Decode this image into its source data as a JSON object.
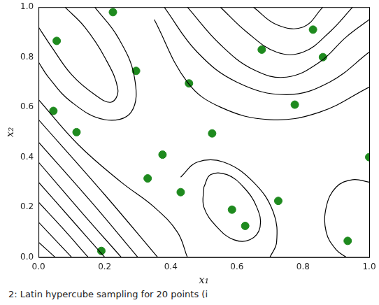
{
  "chart_data": {
    "type": "scatter",
    "caption": "2: Latin hypercube sampling for 20 points (i",
    "xlabel": "x₁",
    "ylabel": "x₂",
    "xlim": [
      0,
      1
    ],
    "ylim": [
      0,
      1
    ],
    "xticks": [
      {
        "value": 0,
        "label": "0.0"
      },
      0.2,
      0.4,
      0.6,
      0.8,
      {
        "value": 1,
        "label": "1.0"
      }
    ],
    "yticks": [
      {
        "value": 0,
        "label": "0.0"
      },
      0.2,
      0.4,
      0.6,
      0.8,
      {
        "value": 1,
        "label": "1.0"
      }
    ],
    "grid": false,
    "series": [
      {
        "type": "scatter",
        "marker": "circle",
        "color": "#1e8a1e",
        "x": [
          0.055,
          0.225,
          0.045,
          0.295,
          0.115,
          0.455,
          0.525,
          0.375,
          0.33,
          0.43,
          0.585,
          0.625,
          0.19,
          0.725,
          0.675,
          0.83,
          0.86,
          0.775,
          0.935,
          1.0
        ],
        "y": [
          0.865,
          0.98,
          0.585,
          0.745,
          0.5,
          0.695,
          0.495,
          0.41,
          0.315,
          0.26,
          0.19,
          0.125,
          0.025,
          0.225,
          0.83,
          0.91,
          0.8,
          0.61,
          0.065,
          0.4
        ]
      }
    ],
    "contours": {
      "type": "line",
      "color": "#000000",
      "lines": [
        [
          [
            0,
            0.06
          ],
          [
            0.05,
            0
          ]
        ],
        [
          [
            0,
            0.14
          ],
          [
            0.1,
            0
          ]
        ],
        [
          [
            0,
            0.22
          ],
          [
            0.07,
            0.12
          ],
          [
            0.15,
            0
          ]
        ],
        [
          [
            0,
            0.3
          ],
          [
            0.1,
            0.15
          ],
          [
            0.2,
            0
          ]
        ],
        [
          [
            0,
            0.38
          ],
          [
            0.13,
            0.18
          ],
          [
            0.25,
            0
          ]
        ],
        [
          [
            0,
            0.46
          ],
          [
            0.16,
            0.22
          ],
          [
            0.3,
            0
          ]
        ],
        [
          [
            0,
            0.55
          ],
          [
            0.2,
            0.25
          ],
          [
            0.36,
            0
          ]
        ],
        [
          [
            0,
            0.63
          ],
          [
            0.12,
            0.45
          ],
          [
            0.25,
            0.3
          ],
          [
            0.35,
            0.2
          ],
          [
            0.42,
            0.1
          ],
          [
            0.45,
            0
          ]
        ],
        [
          [
            0.08,
            1.0
          ],
          [
            0.14,
            0.92
          ],
          [
            0.2,
            0.8
          ],
          [
            0.24,
            0.67
          ],
          [
            0.22,
            0.62
          ],
          [
            0.17,
            0.65
          ],
          [
            0.1,
            0.73
          ],
          [
            0.04,
            0.84
          ],
          [
            0,
            0.92
          ]
        ],
        [
          [
            0.17,
            1.0
          ],
          [
            0.24,
            0.88
          ],
          [
            0.29,
            0.72
          ],
          [
            0.28,
            0.58
          ],
          [
            0.2,
            0.55
          ],
          [
            0.1,
            0.62
          ],
          [
            0.03,
            0.72
          ],
          [
            0,
            0.78
          ]
        ],
        [
          [
            0.5,
            0.28
          ],
          [
            0.52,
            0.33
          ],
          [
            0.57,
            0.33
          ],
          [
            0.62,
            0.28
          ],
          [
            0.66,
            0.2
          ],
          [
            0.67,
            0.12
          ],
          [
            0.64,
            0.07
          ],
          [
            0.59,
            0.07
          ],
          [
            0.54,
            0.12
          ],
          [
            0.5,
            0.2
          ],
          [
            0.5,
            0.28
          ]
        ],
        [
          [
            0.43,
            0.32
          ],
          [
            0.48,
            0.38
          ],
          [
            0.56,
            0.38
          ],
          [
            0.65,
            0.3
          ],
          [
            0.71,
            0.18
          ],
          [
            0.72,
            0.06
          ],
          [
            0.7,
            0
          ]
        ],
        [
          [
            1.0,
            0.3
          ],
          [
            0.95,
            0.31
          ],
          [
            0.9,
            0.28
          ],
          [
            0.87,
            0.2
          ],
          [
            0.87,
            0.1
          ],
          [
            0.9,
            0.03
          ],
          [
            0.93,
            0
          ]
        ],
        [
          [
            0.35,
            0.95
          ],
          [
            0.45,
            0.7
          ],
          [
            0.55,
            0.6
          ],
          [
            0.7,
            0.55
          ],
          [
            0.85,
            0.58
          ],
          [
            1.0,
            0.68
          ]
        ],
        [
          [
            0.38,
            1.0
          ],
          [
            0.48,
            0.82
          ],
          [
            0.6,
            0.7
          ],
          [
            0.75,
            0.65
          ],
          [
            0.88,
            0.7
          ],
          [
            1.0,
            0.82
          ]
        ],
        [
          [
            0.45,
            1.0
          ],
          [
            0.55,
            0.85
          ],
          [
            0.65,
            0.75
          ],
          [
            0.75,
            0.72
          ],
          [
            0.85,
            0.78
          ],
          [
            0.93,
            0.88
          ],
          [
            1.0,
            0.95
          ]
        ],
        [
          [
            0.55,
            1.0
          ],
          [
            0.63,
            0.9
          ],
          [
            0.72,
            0.82
          ],
          [
            0.8,
            0.82
          ],
          [
            0.88,
            0.9
          ],
          [
            0.95,
            1.0
          ]
        ],
        [
          [
            0.65,
            1.0
          ],
          [
            0.72,
            0.93
          ],
          [
            0.8,
            0.92
          ],
          [
            0.86,
            1.0
          ]
        ]
      ]
    }
  }
}
